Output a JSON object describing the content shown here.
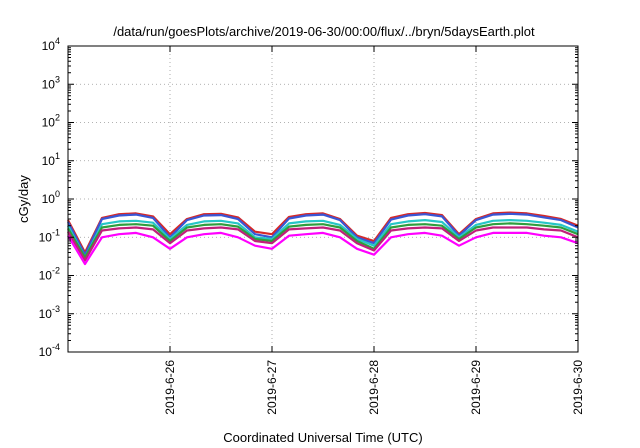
{
  "chart_data": {
    "type": "line",
    "title": "/data/run/goesPlots/archive/2019-06-30/00:00/flux/../bryn/5daysEarth.plot",
    "xlabel": "Coordinated Universal Time (UTC)",
    "ylabel": "cGy/day",
    "x_start": "2019-06-25 00:00",
    "x_end": "2019-06-30 00:00",
    "x_tick_labels": [
      "2019-6-26",
      "2019-6-27",
      "2019-6-28",
      "2019-6-29",
      "2019-6-30"
    ],
    "yscale": "log",
    "ylim": [
      0.0001,
      10000
    ],
    "y_tick_labels": [
      {
        "base": "10",
        "exp": "4"
      },
      {
        "base": "10",
        "exp": "3"
      },
      {
        "base": "10",
        "exp": "2"
      },
      {
        "base": "10",
        "exp": "1"
      },
      {
        "base": "10",
        "exp": "0"
      },
      {
        "base": "10",
        "exp": "-1"
      },
      {
        "base": "10",
        "exp": "-2"
      },
      {
        "base": "10",
        "exp": "-3"
      },
      {
        "base": "10",
        "exp": "-4"
      }
    ],
    "grid": true,
    "x": [
      "2019-06-25 00:00",
      "2019-06-25 04:00",
      "2019-06-25 08:00",
      "2019-06-25 12:00",
      "2019-06-25 16:00",
      "2019-06-25 20:00",
      "2019-06-26 00:00",
      "2019-06-26 04:00",
      "2019-06-26 08:00",
      "2019-06-26 12:00",
      "2019-06-26 16:00",
      "2019-06-26 20:00",
      "2019-06-27 00:00",
      "2019-06-27 04:00",
      "2019-06-27 08:00",
      "2019-06-27 12:00",
      "2019-06-27 16:00",
      "2019-06-27 20:00",
      "2019-06-28 00:00",
      "2019-06-28 04:00",
      "2019-06-28 08:00",
      "2019-06-28 12:00",
      "2019-06-28 16:00",
      "2019-06-28 20:00",
      "2019-06-29 00:00",
      "2019-06-29 04:00",
      "2019-06-29 08:00",
      "2019-06-29 12:00",
      "2019-06-29 16:00",
      "2019-06-29 20:00",
      "2019-06-30 00:00"
    ],
    "series": [
      {
        "color": "#d62828",
        "values": [
          0.28,
          0.04,
          0.32,
          0.4,
          0.42,
          0.35,
          0.12,
          0.3,
          0.4,
          0.41,
          0.33,
          0.14,
          0.12,
          0.34,
          0.4,
          0.42,
          0.3,
          0.11,
          0.08,
          0.32,
          0.4,
          0.43,
          0.38,
          0.12,
          0.3,
          0.42,
          0.44,
          0.42,
          0.36,
          0.3,
          0.2
        ]
      },
      {
        "color": "#3a56d4",
        "values": [
          0.25,
          0.035,
          0.3,
          0.37,
          0.39,
          0.32,
          0.1,
          0.28,
          0.37,
          0.38,
          0.3,
          0.12,
          0.1,
          0.31,
          0.37,
          0.39,
          0.28,
          0.1,
          0.07,
          0.29,
          0.37,
          0.4,
          0.35,
          0.11,
          0.28,
          0.39,
          0.41,
          0.39,
          0.33,
          0.28,
          0.18
        ]
      },
      {
        "color": "#26c6c6",
        "values": [
          0.2,
          0.03,
          0.22,
          0.26,
          0.27,
          0.24,
          0.09,
          0.21,
          0.26,
          0.27,
          0.23,
          0.1,
          0.09,
          0.23,
          0.26,
          0.27,
          0.21,
          0.09,
          0.06,
          0.22,
          0.26,
          0.28,
          0.25,
          0.1,
          0.21,
          0.27,
          0.28,
          0.27,
          0.24,
          0.21,
          0.14
        ]
      },
      {
        "color": "#2e9e3e",
        "values": [
          0.17,
          0.03,
          0.18,
          0.21,
          0.22,
          0.2,
          0.08,
          0.18,
          0.21,
          0.22,
          0.19,
          0.09,
          0.08,
          0.19,
          0.21,
          0.22,
          0.18,
          0.08,
          0.05,
          0.18,
          0.21,
          0.22,
          0.2,
          0.09,
          0.18,
          0.22,
          0.23,
          0.22,
          0.2,
          0.18,
          0.12
        ]
      },
      {
        "color": "#c0207a",
        "values": [
          0.14,
          0.025,
          0.15,
          0.17,
          0.18,
          0.16,
          0.07,
          0.15,
          0.17,
          0.18,
          0.16,
          0.08,
          0.07,
          0.16,
          0.17,
          0.18,
          0.15,
          0.07,
          0.045,
          0.15,
          0.17,
          0.18,
          0.17,
          0.08,
          0.15,
          0.18,
          0.18,
          0.18,
          0.16,
          0.15,
          0.1
        ]
      },
      {
        "color": "#ff00ff",
        "values": [
          0.11,
          0.02,
          0.1,
          0.12,
          0.13,
          0.1,
          0.05,
          0.1,
          0.12,
          0.13,
          0.1,
          0.06,
          0.05,
          0.11,
          0.12,
          0.13,
          0.1,
          0.05,
          0.035,
          0.1,
          0.12,
          0.13,
          0.11,
          0.06,
          0.1,
          0.13,
          0.13,
          0.13,
          0.11,
          0.1,
          0.07
        ]
      }
    ]
  }
}
